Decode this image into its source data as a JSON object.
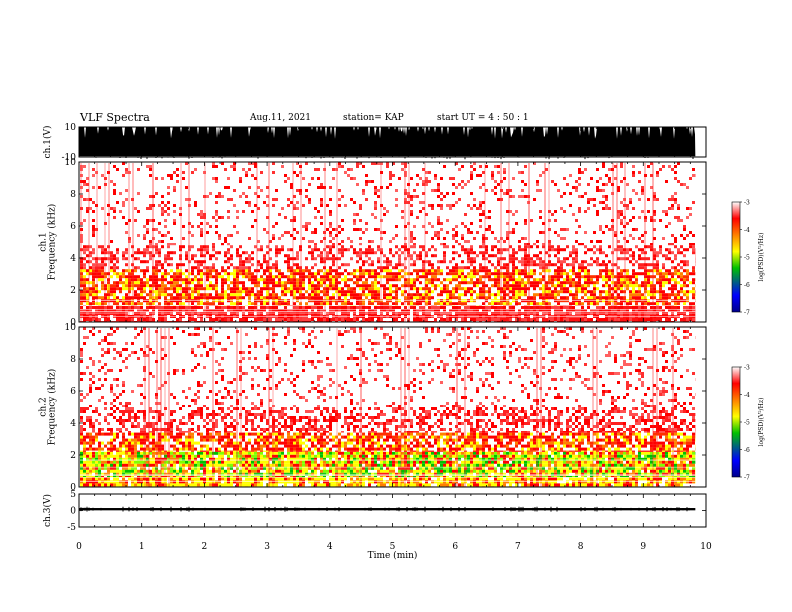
{
  "header": {
    "title": "VLF Spectra",
    "date": "Aug.11, 2021",
    "station": "station= KAP",
    "start": "start  UT =   4 : 50 : 1"
  },
  "colors": {
    "spectrogram_scale": [
      "#00008b",
      "#0000ff",
      "#00c000",
      "#ffff00",
      "#ff8000",
      "#ff0000",
      "#ffffff"
    ],
    "trace": "#000000"
  },
  "chart_data": [
    {
      "type": "area",
      "name": "ch1-waveform",
      "ylabel": "ch.1(V)",
      "ylim": [
        -10,
        10
      ],
      "yticks": [
        "10",
        "-10"
      ],
      "xlim": [
        0,
        10
      ],
      "x_end_data": 9.83,
      "baseline": -9.5,
      "grid": false
    },
    {
      "type": "heatmap",
      "name": "ch1-spectrogram",
      "ylabel": "ch.1\nFrequency (kHz)",
      "ylim": [
        0,
        10
      ],
      "yticks": [
        "0",
        "2",
        "4",
        "6",
        "8",
        "10"
      ],
      "xlim": [
        0,
        10
      ],
      "x_end_data": 9.83,
      "colorbar": {
        "label": "log(PSD)(V²/Hz)",
        "range": [
          -7,
          -3
        ],
        "ticks": [
          "-3",
          "-4",
          "-5",
          "-6",
          "-7"
        ]
      },
      "intensity_bands_khz": [
        {
          "from": 0,
          "to": 1.0,
          "level": "strong-red"
        },
        {
          "from": 1.0,
          "to": 3.3,
          "level": "red-with-yellow-spots"
        },
        {
          "from": 3.3,
          "to": 4.8,
          "level": "medium-red"
        },
        {
          "from": 4.8,
          "to": 10,
          "level": "sparse-red"
        }
      ]
    },
    {
      "type": "heatmap",
      "name": "ch2-spectrogram",
      "ylabel": "ch.2\nFrequency (kHz)",
      "ylim": [
        0,
        10
      ],
      "yticks": [
        "0",
        "2",
        "4",
        "6",
        "8",
        "10"
      ],
      "xlim": [
        0,
        10
      ],
      "x_end_data": 9.83,
      "colorbar": {
        "label": "log(PSD)(V²/Hz)",
        "range": [
          -7,
          -3
        ],
        "ticks": [
          "-3",
          "-4",
          "-5",
          "-6",
          "-7"
        ]
      },
      "intensity_bands_khz": [
        {
          "from": 0,
          "to": 0.6,
          "level": "yellow-red"
        },
        {
          "from": 0.6,
          "to": 2.2,
          "level": "yellow-green-strong"
        },
        {
          "from": 2.2,
          "to": 3.4,
          "level": "red-with-yellow-spots"
        },
        {
          "from": 3.4,
          "to": 5.0,
          "level": "medium-red"
        },
        {
          "from": 5.0,
          "to": 10,
          "level": "sparse-red"
        }
      ]
    },
    {
      "type": "line",
      "name": "ch3-waveform",
      "ylabel": "ch.3(V)",
      "ylim": [
        -5,
        5
      ],
      "yticks": [
        "5",
        "0",
        "-5"
      ],
      "xlim": [
        0,
        10
      ],
      "x_end_data": 9.83,
      "level": 0.4,
      "spread": 0.35,
      "xlabel": "Time (min)",
      "xticks": [
        "0",
        "1",
        "2",
        "3",
        "4",
        "5",
        "6",
        "7",
        "8",
        "9",
        "10"
      ]
    }
  ]
}
